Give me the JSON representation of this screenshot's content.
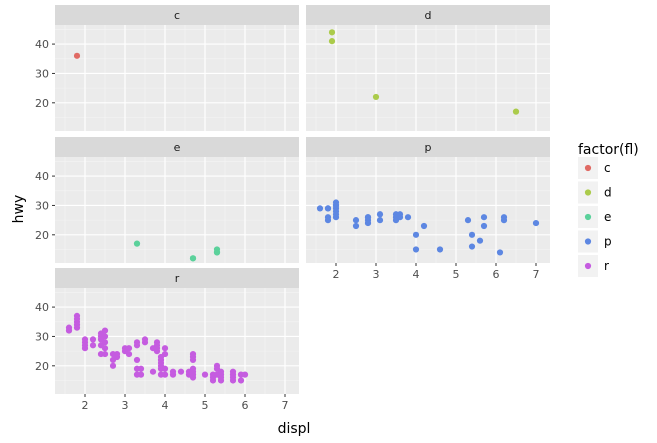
{
  "chart_data": {
    "type": "scatter",
    "facet_by": "fl",
    "xlabel": "displ",
    "ylabel": "hwy",
    "xlim": [
      1.25,
      7.35
    ],
    "ylim": [
      10.4,
      46.5
    ],
    "x_ticks": [
      2,
      3,
      4,
      5,
      6,
      7
    ],
    "y_ticks": [
      20,
      30,
      40
    ],
    "grid": true,
    "legend": {
      "title": "factor(fl)",
      "position": "right",
      "entries": [
        {
          "label": "c",
          "color": "#E06A64"
        },
        {
          "label": "d",
          "color": "#ABCB4B"
        },
        {
          "label": "e",
          "color": "#5BD19B"
        },
        {
          "label": "p",
          "color": "#5D87E2"
        },
        {
          "label": "r",
          "color": "#C55CE0"
        }
      ]
    },
    "panels": [
      {
        "label": "c",
        "color": "#E06A64",
        "points": [
          [
            1.8,
            36
          ]
        ]
      },
      {
        "label": "d",
        "color": "#ABCB4B",
        "points": [
          [
            1.9,
            44
          ],
          [
            1.9,
            41
          ],
          [
            3.0,
            22
          ],
          [
            6.5,
            17
          ]
        ]
      },
      {
        "label": "e",
        "color": "#5BD19B",
        "points": [
          [
            3.3,
            17
          ],
          [
            4.7,
            12
          ],
          [
            4.7,
            12
          ],
          [
            5.3,
            15
          ],
          [
            5.3,
            14
          ],
          [
            5.3,
            14
          ]
        ]
      },
      {
        "label": "p",
        "color": "#5D87E2",
        "points": [
          [
            1.6,
            29
          ],
          [
            1.8,
            29
          ],
          [
            1.8,
            26
          ],
          [
            1.8,
            25
          ],
          [
            1.8,
            29
          ],
          [
            2.0,
            31
          ],
          [
            2.0,
            30
          ],
          [
            2.0,
            29
          ],
          [
            2.0,
            28
          ],
          [
            2.0,
            27
          ],
          [
            2.0,
            26
          ],
          [
            2.0,
            30
          ],
          [
            2.5,
            25
          ],
          [
            2.5,
            23
          ],
          [
            2.8,
            26
          ],
          [
            2.8,
            25
          ],
          [
            2.8,
            24
          ],
          [
            2.8,
            26
          ],
          [
            3.1,
            27
          ],
          [
            3.1,
            25
          ],
          [
            3.5,
            27
          ],
          [
            3.5,
            26
          ],
          [
            3.5,
            25
          ],
          [
            3.6,
            26
          ],
          [
            3.6,
            27
          ],
          [
            3.8,
            26
          ],
          [
            4.0,
            20
          ],
          [
            4.0,
            15
          ],
          [
            4.2,
            23
          ],
          [
            4.6,
            15
          ],
          [
            5.3,
            25
          ],
          [
            5.4,
            20
          ],
          [
            5.4,
            16
          ],
          [
            5.6,
            18
          ],
          [
            5.7,
            26
          ],
          [
            5.7,
            23
          ],
          [
            6.1,
            14
          ],
          [
            6.2,
            26
          ],
          [
            6.2,
            25
          ],
          [
            7.0,
            24
          ]
        ]
      },
      {
        "label": "r",
        "color": "#C55CE0",
        "points": [
          [
            1.6,
            33
          ],
          [
            1.6,
            32
          ],
          [
            1.8,
            37
          ],
          [
            1.8,
            36
          ],
          [
            1.8,
            35
          ],
          [
            1.8,
            34
          ],
          [
            1.8,
            33
          ],
          [
            2.0,
            29
          ],
          [
            2.0,
            28
          ],
          [
            2.0,
            27
          ],
          [
            2.0,
            26
          ],
          [
            2.2,
            29
          ],
          [
            2.2,
            27
          ],
          [
            2.4,
            31
          ],
          [
            2.4,
            30
          ],
          [
            2.4,
            29
          ],
          [
            2.4,
            27
          ],
          [
            2.4,
            24
          ],
          [
            2.5,
            32
          ],
          [
            2.5,
            30
          ],
          [
            2.5,
            28
          ],
          [
            2.5,
            26
          ],
          [
            2.5,
            24
          ],
          [
            2.7,
            24
          ],
          [
            2.7,
            22
          ],
          [
            2.7,
            20
          ],
          [
            2.8,
            24
          ],
          [
            2.8,
            23
          ],
          [
            3.0,
            26
          ],
          [
            3.0,
            25
          ],
          [
            3.1,
            26
          ],
          [
            3.1,
            24
          ],
          [
            3.3,
            22
          ],
          [
            3.3,
            19
          ],
          [
            3.3,
            17
          ],
          [
            3.3,
            28
          ],
          [
            3.3,
            27
          ],
          [
            3.4,
            17
          ],
          [
            3.4,
            19
          ],
          [
            3.5,
            29
          ],
          [
            3.5,
            28
          ],
          [
            3.7,
            26
          ],
          [
            3.7,
            18
          ],
          [
            3.8,
            28
          ],
          [
            3.8,
            27
          ],
          [
            3.8,
            26
          ],
          [
            3.8,
            25
          ],
          [
            3.9,
            23
          ],
          [
            3.9,
            22
          ],
          [
            3.9,
            21
          ],
          [
            3.9,
            20
          ],
          [
            3.9,
            19
          ],
          [
            3.9,
            17
          ],
          [
            4.0,
            26
          ],
          [
            4.0,
            24
          ],
          [
            4.0,
            19
          ],
          [
            4.0,
            17
          ],
          [
            4.2,
            18
          ],
          [
            4.2,
            17
          ],
          [
            4.4,
            18
          ],
          [
            4.6,
            17
          ],
          [
            4.6,
            18
          ],
          [
            4.7,
            24
          ],
          [
            4.7,
            23
          ],
          [
            4.7,
            22
          ],
          [
            4.7,
            19
          ],
          [
            4.7,
            18
          ],
          [
            4.7,
            17
          ],
          [
            4.7,
            16
          ],
          [
            5.0,
            17
          ],
          [
            5.2,
            17
          ],
          [
            5.2,
            16
          ],
          [
            5.2,
            15
          ],
          [
            5.3,
            20
          ],
          [
            5.3,
            19
          ],
          [
            5.3,
            17
          ],
          [
            5.4,
            18
          ],
          [
            5.4,
            17
          ],
          [
            5.4,
            16
          ],
          [
            5.4,
            15
          ],
          [
            5.7,
            18
          ],
          [
            5.7,
            17
          ],
          [
            5.7,
            16
          ],
          [
            5.7,
            15
          ],
          [
            5.9,
            17
          ],
          [
            5.9,
            15
          ],
          [
            6.0,
            17
          ]
        ]
      }
    ]
  }
}
